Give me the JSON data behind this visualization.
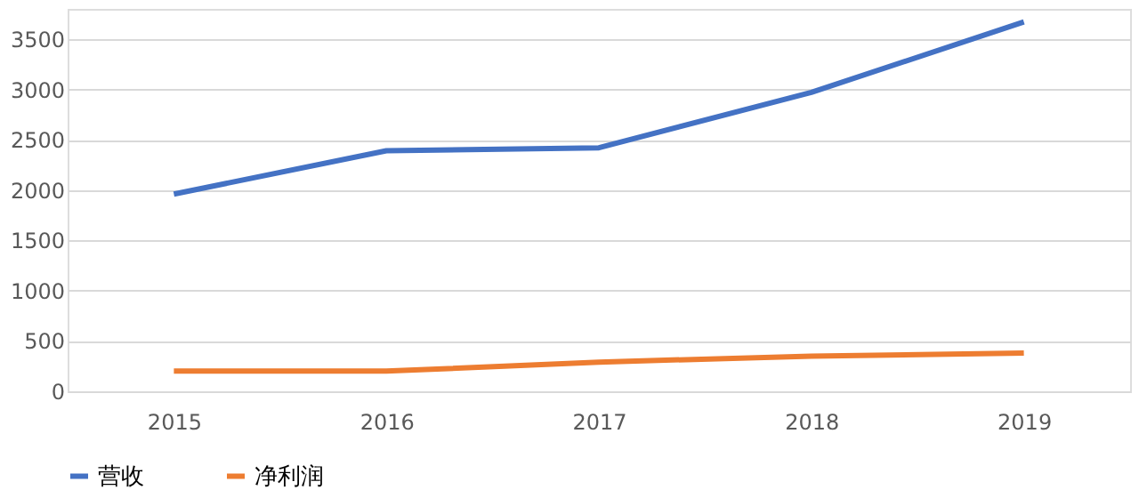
{
  "chart_data": {
    "type": "line",
    "categories": [
      "2015",
      "2016",
      "2017",
      "2018",
      "2019"
    ],
    "series": [
      {
        "name": "营收",
        "color": "#4472c4",
        "values": [
          1960,
          2390,
          2420,
          2970,
          3670
        ]
      },
      {
        "name": "净利润",
        "color": "#ed7d31",
        "values": [
          200,
          200,
          290,
          350,
          380
        ]
      }
    ],
    "ylim": [
      0,
      3800
    ],
    "yticks": [
      0,
      500,
      1000,
      1500,
      2000,
      2500,
      3000,
      3500
    ],
    "grid": "y",
    "legend": "bottom",
    "marker": "none",
    "line_style": "solid"
  }
}
